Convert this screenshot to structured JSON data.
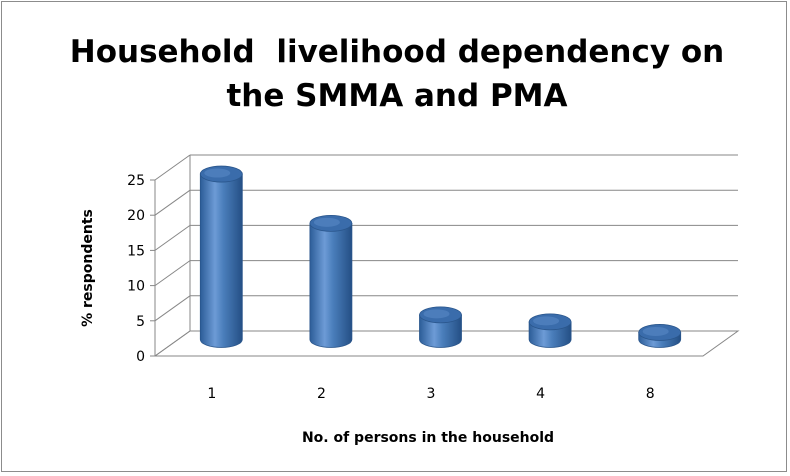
{
  "chart_data": {
    "type": "bar",
    "title_lines": [
      "Household  livelihood dependency on",
      "the SMMA and PMA"
    ],
    "categories": [
      "1",
      "2",
      "3",
      "4",
      "8"
    ],
    "values": [
      23.5,
      16.5,
      3.5,
      2.5,
      1
    ],
    "xlabel": "No. of persons in the household",
    "ylabel": "% respondents",
    "ylim": [
      0,
      25
    ],
    "yticks": [
      "0",
      "5",
      "10",
      "15",
      "20",
      "25"
    ],
    "grid": true,
    "style": "3d-cylinder",
    "colors": {
      "bar": "#4a7ebb",
      "bar_dark": "#2c5d98",
      "bar_light": "#9cbbe6",
      "bar_top": "#3a6cab",
      "grid": "#878787"
    }
  }
}
